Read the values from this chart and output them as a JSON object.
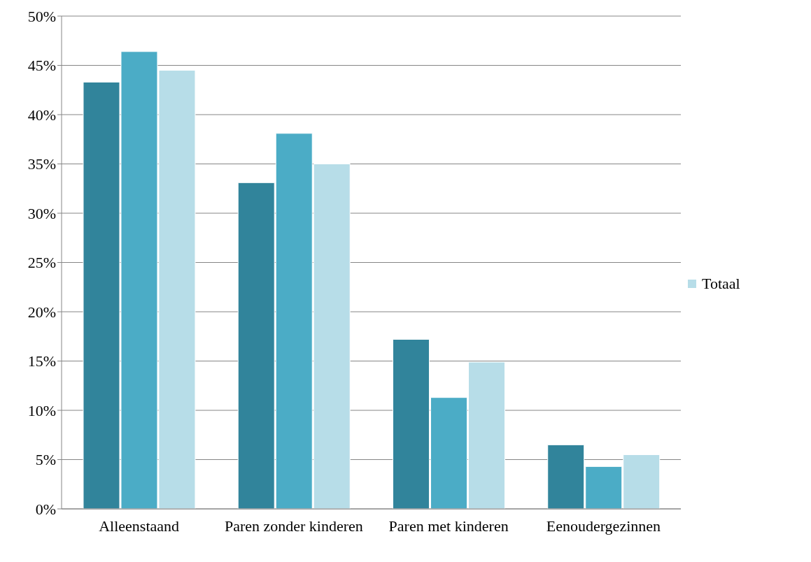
{
  "chart_data": {
    "type": "bar",
    "categories": [
      "Alleenstaand",
      "Paren zonder kinderen",
      "Paren met kinderen",
      "Eenoudergezinnen"
    ],
    "series": [
      {
        "color": "#31849b",
        "values": [
          43.3,
          33.1,
          17.2,
          6.5
        ]
      },
      {
        "color": "#4bacc6",
        "values": [
          46.4,
          38.1,
          11.3,
          4.3
        ]
      },
      {
        "name": "Totaal",
        "color": "#b7dde8",
        "values": [
          44.5,
          35.0,
          14.9,
          5.5
        ]
      }
    ],
    "ylim": [
      0,
      50
    ],
    "yticks": [
      {
        "value": 0,
        "label": "0%"
      },
      {
        "value": 5,
        "label": "5%"
      },
      {
        "value": 10,
        "label": "10%"
      },
      {
        "value": 15,
        "label": "15%"
      },
      {
        "value": 20,
        "label": "20%"
      },
      {
        "value": 25,
        "label": "25%"
      },
      {
        "value": 30,
        "label": "30%"
      },
      {
        "value": 35,
        "label": "35%"
      },
      {
        "value": 40,
        "label": "40%"
      },
      {
        "value": 45,
        "label": "45%"
      },
      {
        "value": 50,
        "label": "50%"
      }
    ],
    "grid": "y",
    "legend": "right"
  }
}
